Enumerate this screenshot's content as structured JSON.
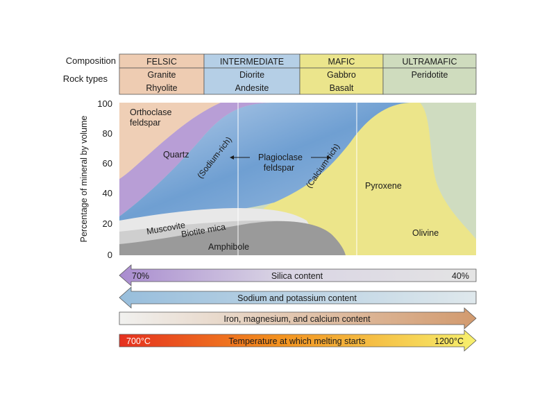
{
  "header": {
    "composition_label": "Composition",
    "rock_types_label": "Rock types",
    "columns": [
      {
        "name": "FELSIC",
        "rock1": "Granite",
        "rock2": "Rhyolite",
        "color": "#eeccb2"
      },
      {
        "name": "INTERMEDIATE",
        "rock1": "Diorite",
        "rock2": "Andesite",
        "color": "#b5cfe6"
      },
      {
        "name": "MAFIC",
        "rock1": "Gabbro",
        "rock2": "Basalt",
        "color": "#ebe58c"
      },
      {
        "name": "ULTRAMAFIC",
        "rock1": "Peridotite",
        "rock2": "",
        "color": "#cfdcbe"
      }
    ]
  },
  "axis": {
    "ylabel": "Percentage of mineral by volume",
    "ticks": [
      "100",
      "80",
      "60",
      "40",
      "20",
      "0"
    ]
  },
  "minerals": {
    "orthoclase_1": "Orthoclase",
    "orthoclase_2": "feldspar",
    "quartz": "Quartz",
    "sodium_rich": "(Sodium-rich)",
    "plagioclase_1": "Plagioclase",
    "plagioclase_2": "feldspar",
    "calcium_rich": "(Calcium-rich)",
    "pyroxene": "Pyroxene",
    "muscovite": "Muscovite",
    "biotite": "Biotite mica",
    "amphibole": "Amphibole",
    "olivine": "Olivine"
  },
  "arrows": {
    "silica": {
      "label": "Silica content",
      "left_value": "70%",
      "right_value": "40%"
    },
    "sodium": {
      "label": "Sodium and potassium content"
    },
    "iron": {
      "label": "Iron, magnesium, and calcium content"
    },
    "temperature": {
      "label": "Temperature at which melting starts",
      "left_value": "700°C",
      "right_value": "1200°C"
    }
  },
  "colors": {
    "orthoclase": "#efcfb6",
    "quartz": "#b89ed6",
    "plagioclase": "#7fa9d6",
    "pyroxene": "#ece58a",
    "olivine": "#cfdcc0",
    "amphibole": "#9a9a9a",
    "muscovite": "#e8e8e8",
    "biotite": "#cfcfcf"
  }
}
